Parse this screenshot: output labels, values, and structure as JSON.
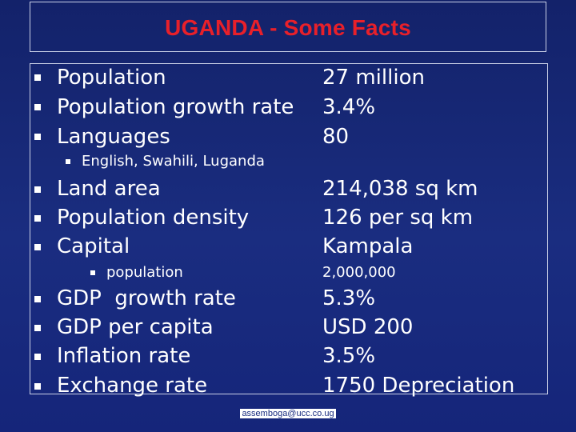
{
  "title": "UGANDA - Some Facts",
  "colors": {
    "title": "#e8202a",
    "background": "#16287a",
    "text": "#ffffff"
  },
  "facts": [
    {
      "label": "Population",
      "value": "27 million"
    },
    {
      "label": "Population growth rate",
      "value": "3.4%"
    },
    {
      "label": "Languages",
      "value": "80"
    },
    {
      "label": "Land area",
      "value": "214,038 sq km"
    },
    {
      "label": "Population density",
      "value": "126 per sq km"
    },
    {
      "label": "Capital",
      "value": "Kampala"
    },
    {
      "label": "GDP  growth rate",
      "value": "5.3%"
    },
    {
      "label": "GDP per capita",
      "value": "USD 200"
    },
    {
      "label": "Inflation rate",
      "value": "3.5%"
    },
    {
      "label": "Exchange rate",
      "value": "1750 Depreciation"
    }
  ],
  "subitems": {
    "languages": {
      "label": "English, Swahili, Luganda"
    },
    "capital": {
      "label": "population",
      "value": "2,000,000"
    }
  },
  "footer": "assemboga@ucc.co.ug",
  "icons": {
    "bullet": "square-bullet-icon"
  }
}
